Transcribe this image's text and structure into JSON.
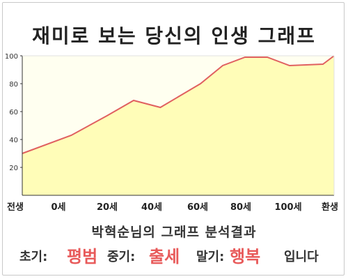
{
  "title": "재미로 보는 당신의 인생 그래프",
  "chart_data": {
    "type": "area",
    "x_ticks": [
      "전생",
      "0세",
      "20세",
      "40세",
      "60세",
      "80세",
      "100세",
      "환생"
    ],
    "y_ticks": [
      20,
      40,
      60,
      80,
      100
    ],
    "ylim": [
      0,
      100
    ],
    "x_range": [
      0,
      14
    ],
    "points": [
      {
        "x": 0,
        "y": 30
      },
      {
        "x": 2.2,
        "y": 43
      },
      {
        "x": 3.8,
        "y": 57
      },
      {
        "x": 5.0,
        "y": 68
      },
      {
        "x": 6.2,
        "y": 63
      },
      {
        "x": 8.0,
        "y": 80
      },
      {
        "x": 9.0,
        "y": 93
      },
      {
        "x": 10.0,
        "y": 99
      },
      {
        "x": 11.0,
        "y": 99
      },
      {
        "x": 12.0,
        "y": 93
      },
      {
        "x": 13.5,
        "y": 94
      },
      {
        "x": 14.0,
        "y": 100
      }
    ],
    "grid": false,
    "colors": {
      "fill": "#fffdb8",
      "line": "#e06060",
      "plot_bg": "#fffff0"
    }
  },
  "summary": "박혁순님의 그래프 분석결과",
  "result": {
    "early_label": "초기:",
    "early_value": "평범",
    "middle_label": "중기:",
    "middle_value": "출세",
    "late_label": "말기:",
    "late_value": "행복",
    "ending": "입니다"
  }
}
